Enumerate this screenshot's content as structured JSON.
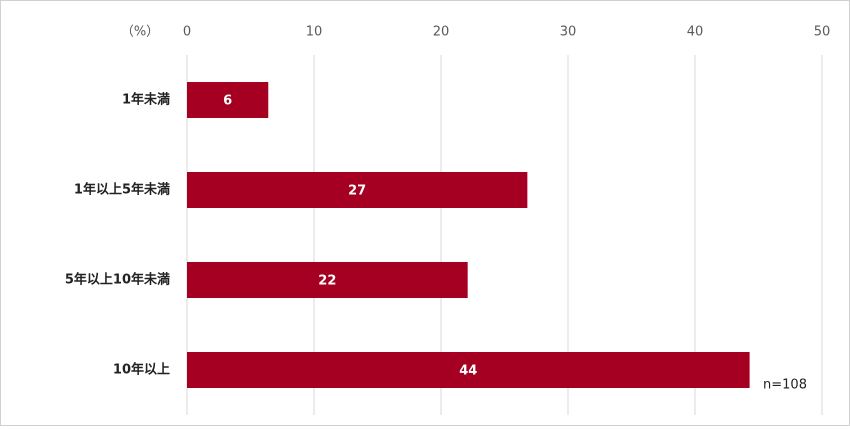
{
  "chart_data": {
    "type": "barh",
    "unit_label": "（%）",
    "annotation": "n=108",
    "categories": [
      "1年未満",
      "1年以上5年未満",
      "5年以上10年未満",
      "10年以上"
    ],
    "values": [
      6.4,
      26.8,
      22.1,
      44.3
    ],
    "value_labels": [
      "6",
      "27",
      "22",
      "44"
    ],
    "color": "#a50021",
    "xlim": [
      0,
      50
    ],
    "xticks": [
      0,
      10,
      20,
      30,
      40,
      50
    ],
    "grid": true
  }
}
